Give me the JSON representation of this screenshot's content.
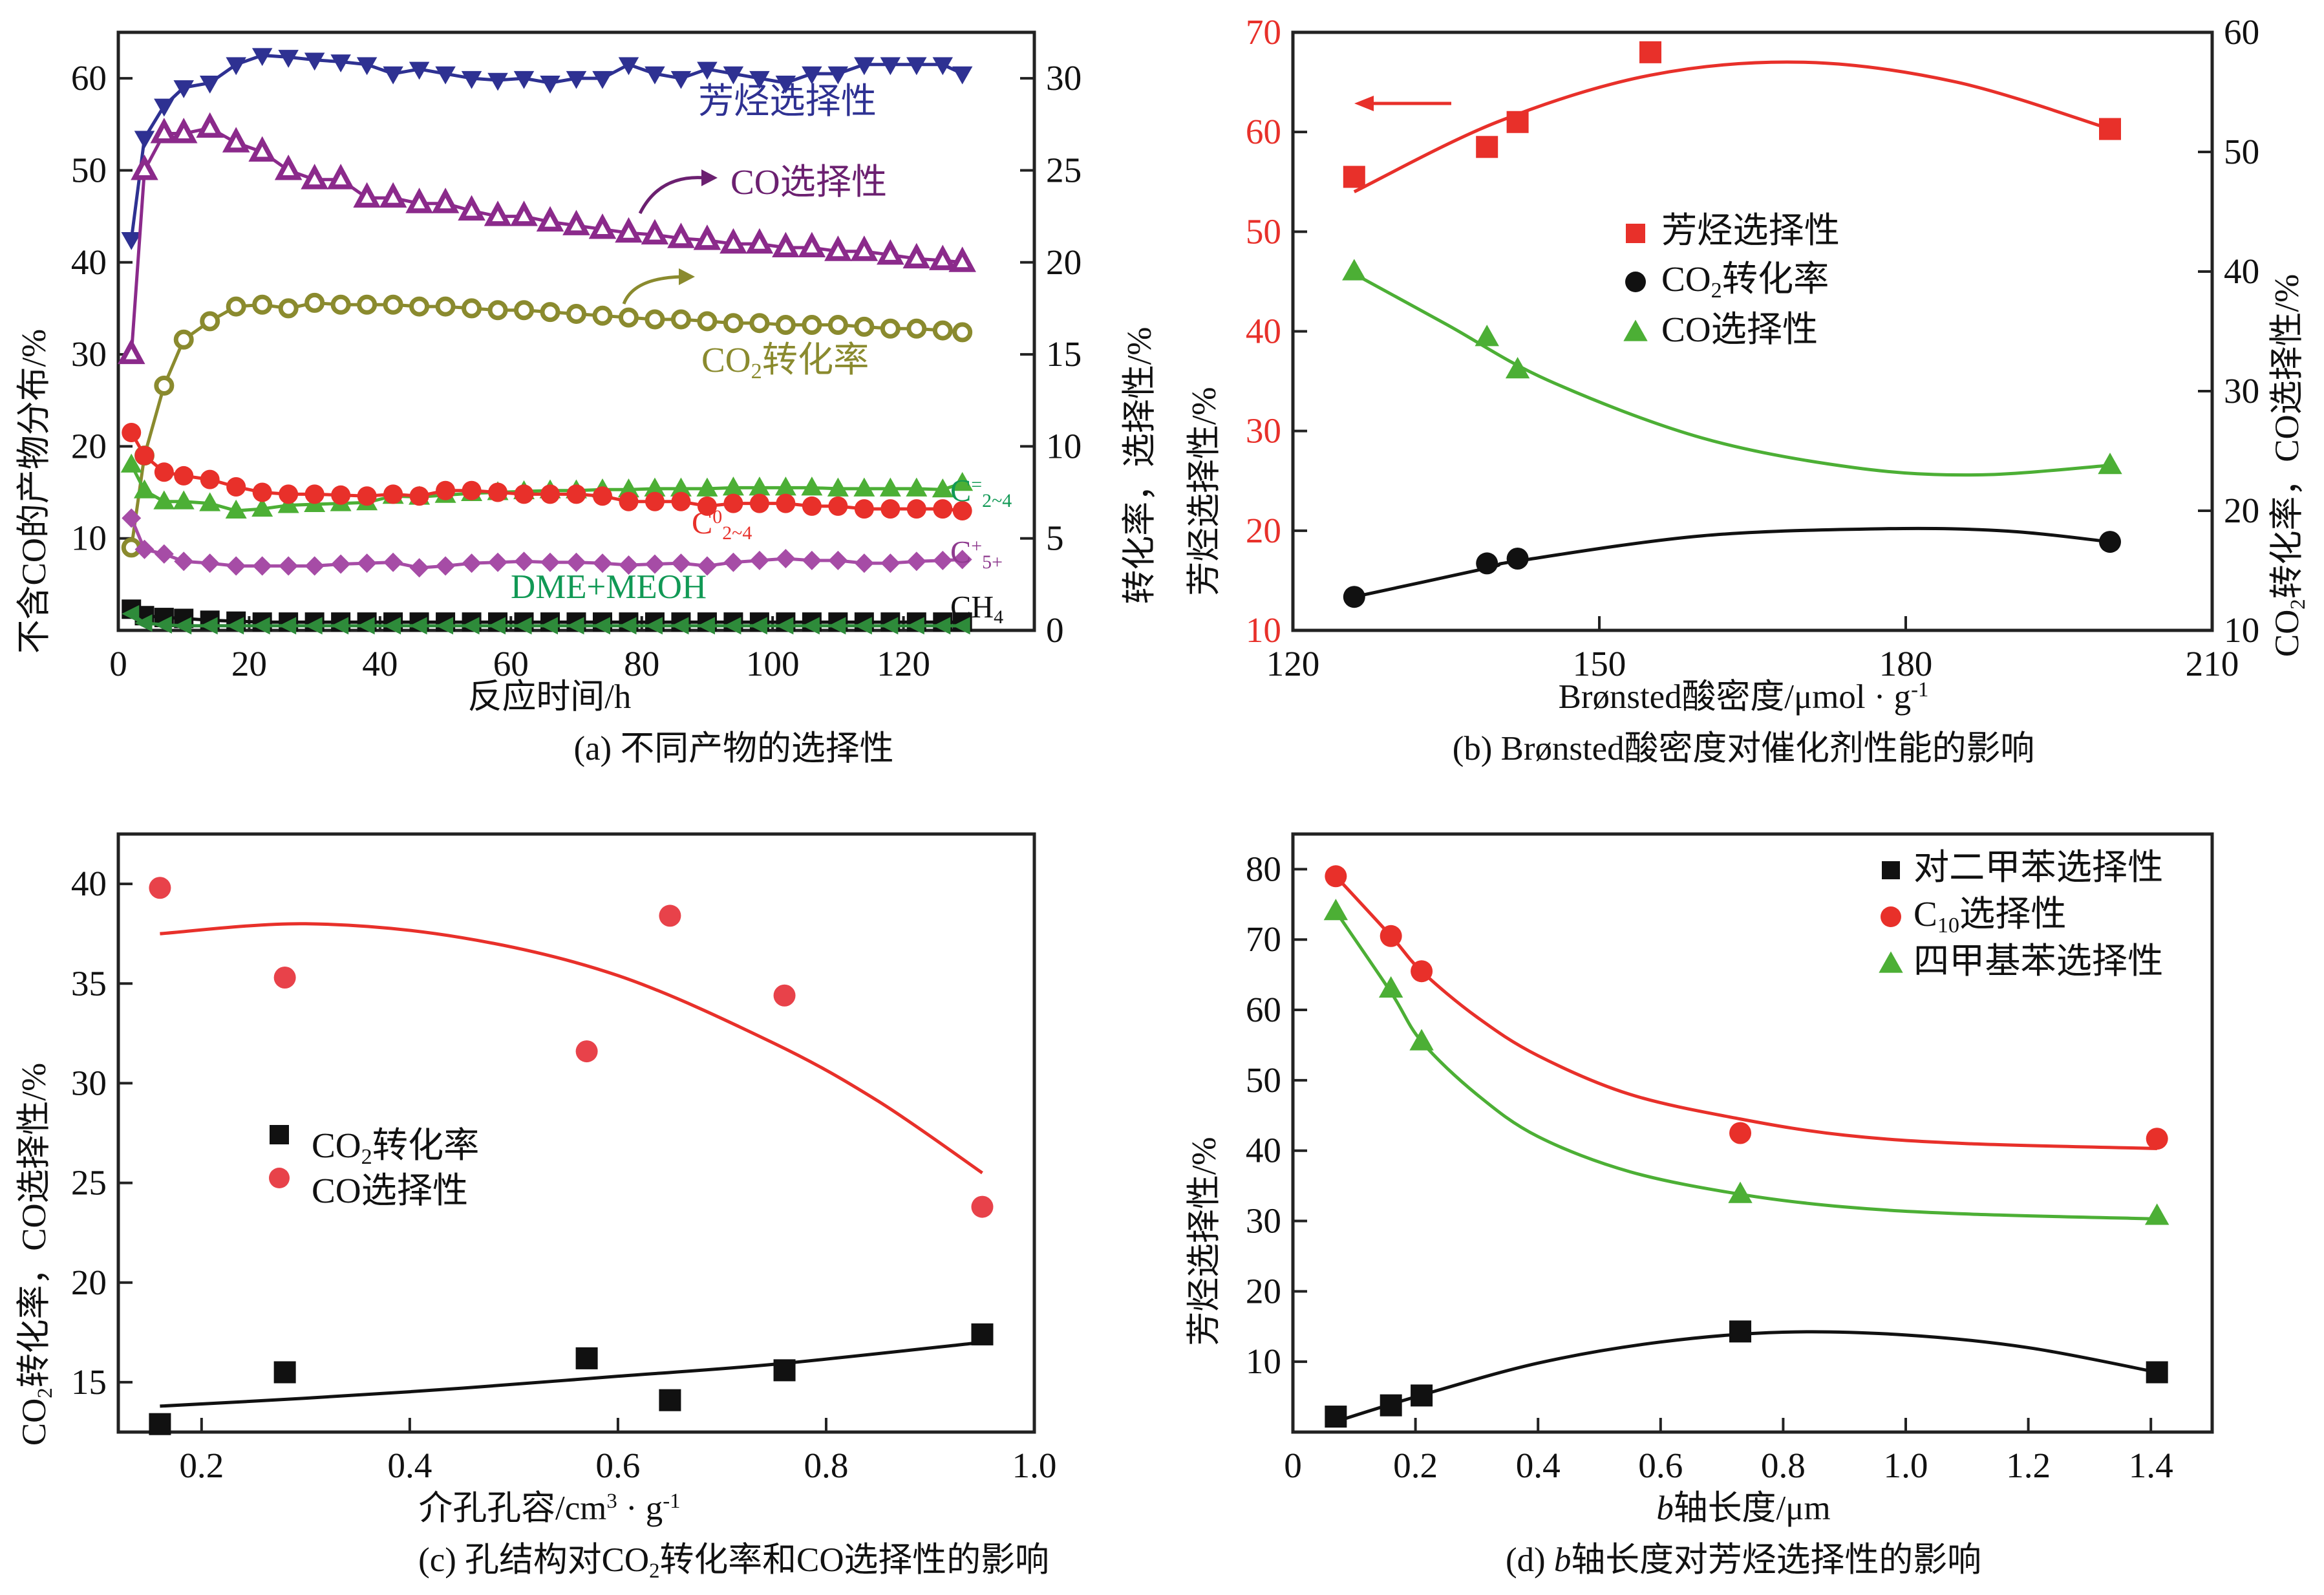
{
  "chart_data": [
    {
      "id": "a",
      "type": "line",
      "caption": "(a) 不同产物的选择性",
      "xlabel": "反应时间/h",
      "ylabel": "不含CO的产物分布/%",
      "ylabel_right": "转化率，选择性/%",
      "xlim": [
        0,
        140
      ],
      "ylim": [
        0,
        65
      ],
      "ylim_right": [
        0,
        32.5
      ],
      "xticks": [
        0,
        20,
        40,
        60,
        80,
        100,
        120
      ],
      "yticks": [
        10,
        20,
        30,
        40,
        50,
        60
      ],
      "yticks_right": [
        0,
        5,
        10,
        15,
        20,
        25,
        30
      ],
      "series": [
        {
          "name": "芳烃选择性",
          "axis": "left",
          "marker": "tri-down",
          "color": "#2e3192",
          "label_color": "#2e3192",
          "x": [
            2,
            4,
            7,
            10,
            14,
            18,
            22,
            26,
            30,
            34,
            38,
            42,
            46,
            50,
            54,
            58,
            62,
            66,
            70,
            74,
            78,
            82,
            86,
            90,
            94,
            98,
            102,
            106,
            110,
            114,
            118,
            122,
            126,
            129
          ],
          "values": [
            42.5,
            53.5,
            57,
            59,
            59.5,
            61.5,
            62.5,
            62.3,
            62,
            61.8,
            61.5,
            60.5,
            61,
            60.5,
            60,
            59.8,
            60,
            59.5,
            60,
            60,
            61.5,
            60.5,
            60,
            61,
            60.5,
            60,
            59.5,
            60.5,
            60.5,
            61.5,
            61.5,
            61.5,
            61.5,
            60.5
          ]
        },
        {
          "name": "CO选择性",
          "axis": "right",
          "marker": "tri-up-open",
          "color": "#8b2a8b",
          "label_color": "#6b2070",
          "x": [
            2,
            4,
            7,
            10,
            14,
            18,
            22,
            26,
            30,
            34,
            38,
            42,
            46,
            50,
            54,
            58,
            62,
            66,
            70,
            74,
            78,
            82,
            86,
            90,
            94,
            98,
            102,
            106,
            110,
            114,
            118,
            122,
            126,
            129
          ],
          "values": [
            15,
            25,
            27,
            27,
            27.3,
            26.5,
            26,
            25,
            24.5,
            24.5,
            23.5,
            23.5,
            23.2,
            23.2,
            22.8,
            22.5,
            22.5,
            22.2,
            22,
            21.8,
            21.6,
            21.5,
            21.3,
            21.2,
            21,
            21,
            20.8,
            20.8,
            20.6,
            20.6,
            20.4,
            20.2,
            20.1,
            20
          ]
        },
        {
          "name": "CO2转化率",
          "axis": "right",
          "marker": "circle-open",
          "color": "#8a8a2e",
          "label_color": "#8a8a2e",
          "x": [
            2,
            4,
            7,
            10,
            14,
            18,
            22,
            26,
            30,
            34,
            38,
            42,
            46,
            50,
            54,
            58,
            62,
            66,
            70,
            74,
            78,
            82,
            86,
            90,
            94,
            98,
            102,
            106,
            110,
            114,
            118,
            122,
            126,
            129
          ],
          "values": [
            4.5,
            9.5,
            13.3,
            15.8,
            16.8,
            17.6,
            17.7,
            17.5,
            17.8,
            17.7,
            17.7,
            17.7,
            17.6,
            17.6,
            17.5,
            17.4,
            17.4,
            17.3,
            17.2,
            17.1,
            17,
            16.9,
            16.9,
            16.8,
            16.7,
            16.7,
            16.6,
            16.6,
            16.6,
            16.5,
            16.4,
            16.4,
            16.3,
            16.2
          ]
        },
        {
          "name": "C2~4 烯烃",
          "label": "C",
          "sub": "2~4",
          "sup": "=",
          "axis": "left",
          "marker": "tri-up",
          "color": "#4caf35",
          "label_color": "#119955",
          "x": [
            2,
            4,
            7,
            10,
            14,
            18,
            22,
            26,
            30,
            34,
            38,
            42,
            46,
            50,
            54,
            58,
            62,
            66,
            70,
            74,
            78,
            82,
            86,
            90,
            94,
            98,
            102,
            106,
            110,
            114,
            118,
            122,
            126,
            129
          ],
          "values": [
            18,
            15.2,
            14,
            14,
            13.8,
            13,
            13.2,
            13.6,
            13.7,
            13.8,
            13.9,
            14.6,
            14.5,
            14.7,
            14.9,
            15,
            15.1,
            15.2,
            15.2,
            15.3,
            15.3,
            15.4,
            15.4,
            15.4,
            15.5,
            15.5,
            15.5,
            15.5,
            15.4,
            15.4,
            15.4,
            15.4,
            15.3,
            16
          ]
        },
        {
          "name": "C2~4 烷烃",
          "label": "C",
          "sub": "2~4",
          "sup": "0",
          "axis": "left",
          "marker": "circle",
          "color": "#e8302a",
          "label_color": "#e8302a",
          "x": [
            2,
            4,
            7,
            10,
            14,
            18,
            22,
            26,
            30,
            34,
            38,
            42,
            46,
            50,
            54,
            58,
            62,
            66,
            70,
            74,
            78,
            82,
            86,
            90,
            94,
            98,
            102,
            106,
            110,
            114,
            118,
            122,
            126,
            129
          ],
          "values": [
            21.5,
            19,
            17.2,
            16.8,
            16.4,
            15.6,
            15,
            14.8,
            14.8,
            14.7,
            14.6,
            14.8,
            14.6,
            15.2,
            15.2,
            15,
            14.8,
            14.8,
            14.8,
            14.6,
            14,
            14,
            14,
            13.5,
            13.8,
            13.8,
            13.8,
            13.5,
            13.5,
            13.2,
            13.2,
            13.2,
            13.2,
            13
          ]
        },
        {
          "name": "C5+",
          "label": "C",
          "sub": "5+",
          "sup": "+",
          "axis": "left",
          "marker": "diamond",
          "color": "#a64ca6",
          "label_color": "#8e3a8e",
          "x": [
            2,
            4,
            7,
            10,
            14,
            18,
            22,
            26,
            30,
            34,
            38,
            42,
            46,
            50,
            54,
            58,
            62,
            66,
            70,
            74,
            78,
            82,
            86,
            90,
            94,
            98,
            102,
            106,
            110,
            114,
            118,
            122,
            126,
            129
          ],
          "values": [
            12.2,
            8.8,
            8.3,
            7.5,
            7.3,
            7,
            7,
            7,
            7,
            7.2,
            7.3,
            7.4,
            6.8,
            7,
            7.3,
            7.4,
            7.5,
            7.4,
            7.4,
            7.3,
            7.1,
            7.2,
            7.3,
            7,
            7.4,
            7.6,
            7.8,
            7.6,
            7.6,
            7.3,
            7.3,
            7.5,
            7.6,
            7.7
          ]
        },
        {
          "name": "CH4",
          "axis": "left",
          "marker": "square",
          "color": "#111111",
          "label_color": "#111111",
          "x": [
            2,
            4,
            7,
            10,
            14,
            18,
            22,
            26,
            30,
            34,
            38,
            42,
            46,
            50,
            54,
            58,
            62,
            66,
            70,
            74,
            78,
            82,
            86,
            90,
            94,
            98,
            102,
            106,
            110,
            114,
            118,
            122,
            126,
            129
          ],
          "values": [
            2.3,
            1.6,
            1.4,
            1.3,
            1.1,
            1,
            0.9,
            0.9,
            0.9,
            0.9,
            0.9,
            0.9,
            0.9,
            0.9,
            0.9,
            0.9,
            0.9,
            0.9,
            0.9,
            0.9,
            0.9,
            0.9,
            0.9,
            0.9,
            0.9,
            0.9,
            0.9,
            0.9,
            0.9,
            0.9,
            0.9,
            0.9,
            0.9,
            0.9
          ]
        },
        {
          "name": "DME+MEOH",
          "axis": "left",
          "marker": "tri-left",
          "color": "#2e8b3a",
          "label_color": "#119955",
          "x": [
            2,
            4,
            7,
            10,
            14,
            18,
            22,
            26,
            30,
            34,
            38,
            42,
            46,
            50,
            54,
            58,
            62,
            66,
            70,
            74,
            78,
            82,
            86,
            90,
            94,
            98,
            102,
            106,
            110,
            114,
            118,
            122,
            126,
            129
          ],
          "values": [
            1.8,
            0.8,
            0.6,
            0.5,
            0.5,
            0.5,
            0.5,
            0.5,
            0.5,
            0.5,
            0.5,
            0.5,
            0.5,
            0.5,
            0.5,
            0.5,
            0.5,
            0.5,
            0.5,
            0.5,
            0.5,
            0.5,
            0.5,
            0.5,
            0.5,
            0.5,
            0.5,
            0.5,
            0.5,
            0.5,
            0.5,
            0.5,
            0.5,
            0.5
          ]
        }
      ],
      "annotations": [
        {
          "text": "芳烃选择性",
          "color": "#2e3192"
        },
        {
          "text": "CO选择性",
          "color": "#6b2070",
          "arrow": "right"
        },
        {
          "text": "CO2转化率",
          "color": "#8a8a2e",
          "arrow": "right"
        },
        {
          "text": "DME+MEOH",
          "color": "#119955"
        },
        {
          "text": "CH4",
          "color": "#111111"
        }
      ]
    },
    {
      "id": "b",
      "type": "scatter",
      "caption": "(b) Brønsted酸密度对催化剂性能的影响",
      "xlabel": "Brønsted酸密度/μmol · g-1",
      "ylabel": "芳烃选择性/%",
      "ylabel_right": "CO2转化率，CO选择性/%",
      "xlim": [
        120,
        210
      ],
      "ylim": [
        10,
        70
      ],
      "ylim_right": [
        10,
        60
      ],
      "xticks": [
        120,
        150,
        180,
        210
      ],
      "yticks": [
        10,
        20,
        30,
        40,
        50,
        60,
        70
      ],
      "yticks_right": [
        10,
        20,
        30,
        40,
        50,
        60
      ],
      "legend": "center",
      "series": [
        {
          "name": "芳烃选择性",
          "axis": "left",
          "marker": "square",
          "color": "#e8302a",
          "x": [
            126,
            139,
            142,
            155,
            200
          ],
          "values": [
            55.5,
            58.5,
            61,
            68,
            60.3
          ],
          "fit_x": [
            126,
            140,
            155,
            170,
            185,
            200
          ],
          "fit": [
            54,
            61,
            65.7,
            67,
            65,
            60.3
          ]
        },
        {
          "name": "CO2转化率",
          "axis": "right",
          "marker": "circle",
          "color": "#111111",
          "x": [
            126,
            139,
            142,
            200
          ],
          "values": [
            12.8,
            15.6,
            16.0,
            17.4
          ],
          "fit_x": [
            126,
            139,
            142,
            160,
            178,
            190,
            200
          ],
          "fit": [
            12.8,
            15.2,
            15.8,
            17.9,
            18.5,
            18.3,
            17.4
          ]
        },
        {
          "name": "CO选择性",
          "axis": "right",
          "marker": "tri-up",
          "color": "#4caf35",
          "x": [
            126,
            139,
            142,
            200
          ],
          "values": [
            40,
            34.5,
            31.8,
            23.8
          ],
          "fit_x": [
            126,
            135,
            145,
            160,
            175,
            187,
            200
          ],
          "fit": [
            39.8,
            35.6,
            30.9,
            26.1,
            23.6,
            23.0,
            23.8
          ]
        }
      ],
      "annotations": [
        {
          "text": "←",
          "color": "#e8302a",
          "arrow": "left"
        }
      ]
    },
    {
      "id": "c",
      "type": "scatter",
      "caption": "(c) 孔结构对CO2转化率和CO选择性的影响",
      "xlabel": "介孔孔容/cm3 · g-1",
      "ylabel": "CO2转化率，CO选择性/%",
      "xlim": [
        0.12,
        1.0
      ],
      "ylim": [
        12.5,
        42.5
      ],
      "xticks": [
        0.2,
        0.4,
        0.6,
        0.8,
        1.0
      ],
      "yticks": [
        15,
        20,
        25,
        30,
        35,
        40
      ],
      "legend": "center-left",
      "series": [
        {
          "name": "CO2转化率",
          "marker": "square",
          "color": "#111111",
          "x": [
            0.16,
            0.28,
            0.57,
            0.65,
            0.76,
            0.95
          ],
          "values": [
            12.9,
            15.5,
            16.2,
            14.1,
            15.6,
            17.4
          ],
          "fit_x": [
            0.16,
            0.3,
            0.45,
            0.6,
            0.75,
            0.95
          ],
          "fit": [
            13.8,
            14.2,
            14.7,
            15.3,
            15.9,
            17.0
          ]
        },
        {
          "name": "CO选择性",
          "marker": "circle",
          "color": "#e8424a",
          "x": [
            0.16,
            0.28,
            0.57,
            0.65,
            0.76,
            0.95
          ],
          "values": [
            39.8,
            35.3,
            31.6,
            38.4,
            34.4,
            23.8
          ],
          "fit_x": [
            0.16,
            0.3,
            0.45,
            0.6,
            0.75,
            0.85,
            0.95
          ],
          "fit": [
            37.5,
            38.0,
            37.3,
            35.4,
            32.0,
            29.1,
            25.5
          ]
        }
      ]
    },
    {
      "id": "d",
      "type": "scatter",
      "caption": "(d) b轴长度对芳烃选择性的影响",
      "xlabel": "b轴长度/μm",
      "ylabel": "芳烃选择性/%",
      "xlim": [
        0,
        1.5
      ],
      "ylim": [
        0,
        85
      ],
      "xticks": [
        0,
        0.2,
        0.4,
        0.6,
        0.8,
        1.0,
        1.2,
        1.4
      ],
      "yticks": [
        10,
        20,
        30,
        40,
        50,
        60,
        70,
        80
      ],
      "legend": "top-right",
      "series": [
        {
          "name": "对二甲苯选择性",
          "marker": "square",
          "color": "#111111",
          "x": [
            0.07,
            0.16,
            0.21,
            0.73,
            1.41
          ],
          "values": [
            2.2,
            3.8,
            5.2,
            14.3,
            8.5
          ],
          "fit_x": [
            0.07,
            0.2,
            0.4,
            0.6,
            0.8,
            1.0,
            1.2,
            1.41
          ],
          "fit": [
            1.5,
            5,
            9.8,
            12.8,
            14.2,
            13.8,
            12,
            8.5
          ]
        },
        {
          "name": "C10选择性",
          "marker": "circle",
          "color": "#e8302a",
          "x": [
            0.07,
            0.16,
            0.21,
            0.73,
            1.41
          ],
          "values": [
            79,
            70.5,
            65.5,
            42.5,
            41.7
          ],
          "fit_x": [
            0.07,
            0.16,
            0.21,
            0.3,
            0.4,
            0.55,
            0.73,
            0.9,
            1.1,
            1.41
          ],
          "fit": [
            79,
            70.5,
            65.5,
            59,
            53.5,
            48,
            44.5,
            42.2,
            41,
            40.3
          ]
        },
        {
          "name": "四甲基苯选择性",
          "marker": "tri-up",
          "color": "#4caf35",
          "x": [
            0.07,
            0.16,
            0.21,
            0.73,
            1.41
          ],
          "values": [
            74,
            63,
            55.5,
            33.8,
            30.7
          ],
          "fit_x": [
            0.07,
            0.16,
            0.21,
            0.3,
            0.4,
            0.55,
            0.73,
            0.9,
            1.1,
            1.41
          ],
          "fit": [
            74,
            62.5,
            55.5,
            48,
            42,
            37,
            33.8,
            32,
            31,
            30.3
          ]
        }
      ]
    }
  ]
}
